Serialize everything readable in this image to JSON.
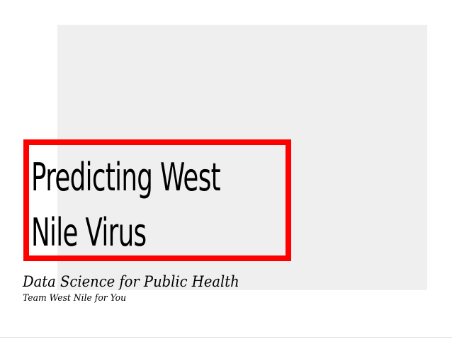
{
  "slide": {
    "title_line1": "Predicting West",
    "title_line2": "Nile Virus",
    "subtitle": "Data Science for Public Health",
    "team": "Team West Nile for You"
  },
  "colors": {
    "panel_background": "#efefef",
    "highlight_border": "#ff0000",
    "text": "#000000"
  }
}
